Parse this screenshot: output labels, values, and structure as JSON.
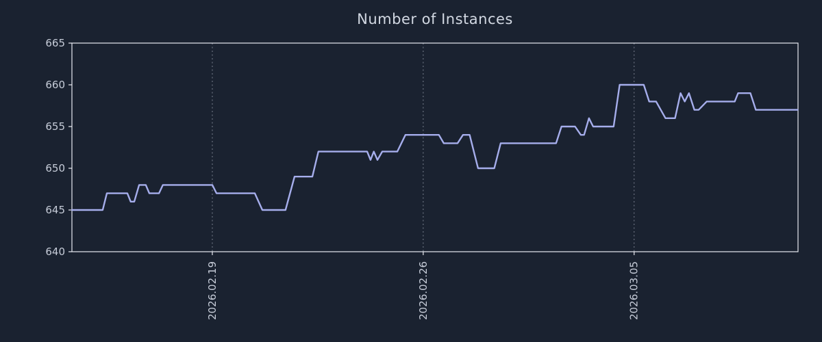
{
  "colors": {
    "background": "#1a2230",
    "line": "#a6aeec",
    "border": "#e9ebf2",
    "tick_label": "#c6ccd8",
    "title": "#d2d8e2",
    "grid": "#8a919f"
  },
  "chart_data": {
    "type": "line",
    "title": "Number of Instances",
    "series_name": "Number of Instances",
    "x": [
      0.0,
      1.02,
      1.16,
      1.84,
      1.95,
      2.07,
      2.23,
      2.45,
      2.57,
      2.89,
      3.02,
      4.66,
      4.8,
      6.07,
      6.32,
      7.09,
      7.39,
      7.98,
      8.18,
      9.8,
      9.91,
      10.02,
      10.14,
      10.3,
      10.8,
      11.07,
      12.18,
      12.34,
      12.8,
      12.98,
      13.2,
      13.48,
      14.02,
      14.23,
      16.07,
      16.25,
      16.7,
      16.89,
      17.0,
      17.16,
      17.3,
      17.98,
      18.18,
      18.98,
      19.16,
      19.39,
      19.7,
      20.02,
      20.2,
      20.34,
      20.48,
      20.66,
      20.8,
      21.07,
      22.0,
      22.11,
      22.52,
      22.7,
      24.09
    ],
    "y": [
      645,
      645,
      647,
      647,
      646,
      646,
      648,
      648,
      647,
      647,
      648,
      648,
      647,
      647,
      645,
      645,
      649,
      649,
      652,
      652,
      651,
      652,
      651,
      652,
      652,
      654,
      654,
      653,
      653,
      654,
      654,
      650,
      650,
      653,
      653,
      655,
      655,
      654,
      654,
      656,
      655,
      655,
      660,
      660,
      658,
      658,
      656,
      656,
      659,
      658,
      659,
      657,
      657,
      658,
      658,
      659,
      659,
      657,
      657
    ],
    "xlim": [
      0,
      24.1
    ],
    "ylim": [
      640,
      665
    ],
    "yticks": [
      640,
      645,
      650,
      655,
      660,
      665
    ],
    "xticks": [
      {
        "pos": 4.66,
        "label": "2026.02.19"
      },
      {
        "pos": 11.66,
        "label": "2026.02.26"
      },
      {
        "pos": 18.66,
        "label": "2026.03.05"
      }
    ],
    "grid": "vertical-dashed-at-xticks",
    "legend": "none",
    "x_tick_rotation_deg": 90
  }
}
